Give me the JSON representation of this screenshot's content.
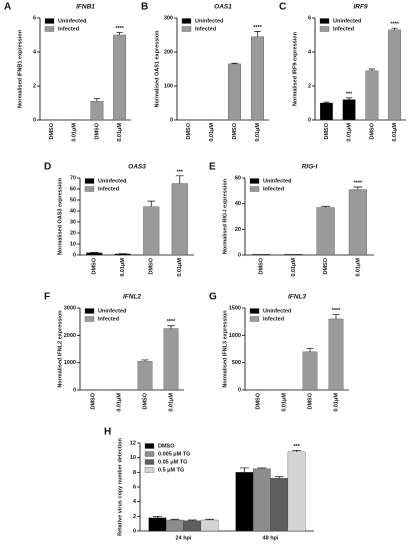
{
  "chart_data": [
    {
      "type": "bar",
      "label": "A",
      "title": "IFNB1",
      "ylabel": "Normalised IFNB1 expression",
      "categories": [
        "DMSO",
        "0.01μM",
        "DMSO",
        "0.01μM"
      ],
      "series": [
        {
          "name": "Uninfected",
          "color": "#000000",
          "values": [
            0.02,
            0.02,
            null,
            null
          ],
          "errors": [
            0,
            0,
            null,
            null
          ]
        },
        {
          "name": "Infected",
          "color": "#9a9a9a",
          "values": [
            null,
            null,
            1.1,
            5.0
          ],
          "errors": [
            null,
            null,
            0.15,
            0.15
          ]
        }
      ],
      "ylim": [
        0,
        6
      ],
      "yticks": [
        0,
        2,
        4,
        6
      ],
      "annotations": [
        {
          "text": "****",
          "series": 1,
          "index": 3
        }
      ]
    },
    {
      "type": "bar",
      "label": "B",
      "title": "OAS1",
      "ylabel": "Normalised OAS1 expression",
      "categories": [
        "DMSO",
        "0.01μM",
        "DMSO",
        "0.01μM"
      ],
      "series": [
        {
          "name": "Uninfected",
          "color": "#000000",
          "values": [
            1,
            1,
            null,
            null
          ],
          "errors": [
            0,
            0,
            null,
            null
          ]
        },
        {
          "name": "Infected",
          "color": "#9a9a9a",
          "values": [
            null,
            null,
            165,
            245
          ],
          "errors": [
            null,
            null,
            2,
            15
          ]
        }
      ],
      "ylim": [
        0,
        300
      ],
      "yticks": [
        0,
        100,
        200,
        300
      ],
      "annotations": [
        {
          "text": "****",
          "series": 1,
          "index": 3
        }
      ]
    },
    {
      "type": "bar",
      "label": "C",
      "title": "IRF9",
      "ylabel": "Normalised IRF9 expression",
      "categories": [
        "DMSO",
        "0.01μM",
        "DMSO",
        "0.01μM"
      ],
      "series": [
        {
          "name": "Uninfected",
          "color": "#000000",
          "values": [
            1.0,
            1.2,
            null,
            null
          ],
          "errors": [
            0.05,
            0.1,
            null,
            null
          ]
        },
        {
          "name": "Infected",
          "color": "#9a9a9a",
          "values": [
            null,
            null,
            2.9,
            5.3
          ],
          "errors": [
            null,
            null,
            0.1,
            0.1
          ]
        }
      ],
      "ylim": [
        0,
        6
      ],
      "yticks": [
        0,
        2,
        4,
        6
      ],
      "annotations": [
        {
          "text": "***",
          "series": 0,
          "index": 1
        },
        {
          "text": "****",
          "series": 1,
          "index": 3
        }
      ]
    },
    {
      "type": "bar",
      "label": "D",
      "title": "OAS3",
      "ylabel": "Normalised OAS3 expression",
      "categories": [
        "DMSO",
        "0.01μM",
        "DMSO",
        "0.01μM"
      ],
      "series": [
        {
          "name": "Uninfected",
          "color": "#000000",
          "values": [
            2,
            1,
            null,
            null
          ],
          "errors": [
            0.3,
            0.2,
            null,
            null
          ]
        },
        {
          "name": "Infected",
          "color": "#9a9a9a",
          "values": [
            null,
            null,
            44,
            65
          ],
          "errors": [
            null,
            null,
            5,
            7
          ]
        }
      ],
      "ylim": [
        0,
        70
      ],
      "yticks": [
        0,
        10,
        20,
        30,
        40,
        50,
        60,
        70
      ],
      "annotations": [
        {
          "text": "***",
          "series": 1,
          "index": 3
        }
      ]
    },
    {
      "type": "bar",
      "label": "E",
      "title": "RIG-I",
      "ylabel": "Normalised RIG-I expression",
      "categories": [
        "DMSO",
        "0.01μM",
        "DMSO",
        "0.01μM"
      ],
      "series": [
        {
          "name": "Uninfected",
          "color": "#000000",
          "values": [
            0.5,
            0.5,
            null,
            null
          ],
          "errors": [
            0,
            0,
            null,
            null
          ]
        },
        {
          "name": "Infected",
          "color": "#9a9a9a",
          "values": [
            null,
            null,
            37,
            51
          ],
          "errors": [
            null,
            null,
            1,
            2
          ]
        }
      ],
      "ylim": [
        0,
        60
      ],
      "yticks": [
        0,
        20,
        40,
        60
      ],
      "annotations": [
        {
          "text": "****",
          "series": 1,
          "index": 3
        }
      ]
    },
    {
      "type": "bar",
      "label": "F",
      "title": "IFNL2",
      "ylabel": "Normalised IFNL2 expression",
      "categories": [
        "DMSO",
        "0.01μM",
        "DMSO",
        "0.01μM"
      ],
      "series": [
        {
          "name": "Uninfected",
          "color": "#000000",
          "values": [
            5,
            5,
            null,
            null
          ],
          "errors": [
            0,
            0,
            null,
            null
          ]
        },
        {
          "name": "Infected",
          "color": "#9a9a9a",
          "values": [
            null,
            null,
            1050,
            2250
          ],
          "errors": [
            null,
            null,
            50,
            100
          ]
        }
      ],
      "ylim": [
        0,
        3000
      ],
      "yticks": [
        0,
        1000,
        2000,
        3000
      ],
      "annotations": [
        {
          "text": "****",
          "series": 1,
          "index": 3
        }
      ]
    },
    {
      "type": "bar",
      "label": "G",
      "title": "IFNL3",
      "ylabel": "Normalised IFNL3 expression",
      "categories": [
        "DMSO",
        "0.01μM",
        "DMSO",
        "0.01μM"
      ],
      "series": [
        {
          "name": "Uninfected",
          "color": "#000000",
          "values": [
            2,
            2,
            null,
            null
          ],
          "errors": [
            0,
            0,
            null,
            null
          ]
        },
        {
          "name": "Infected",
          "color": "#9a9a9a",
          "values": [
            null,
            null,
            700,
            1300
          ],
          "errors": [
            null,
            null,
            60,
            80
          ]
        }
      ],
      "ylim": [
        0,
        1500
      ],
      "yticks": [
        0,
        500,
        1000,
        1500
      ],
      "annotations": [
        {
          "text": "****",
          "series": 1,
          "index": 3
        }
      ]
    },
    {
      "type": "bar",
      "label": "H",
      "ylabel": "Relative virus copy number detection",
      "categories": [
        "24 hpi",
        "48 hpi"
      ],
      "series": [
        {
          "name": "DMSO",
          "color": "#000000",
          "values": [
            1.8,
            8.0
          ],
          "errors": [
            0.2,
            0.6
          ]
        },
        {
          "name": "0.005 μM TG",
          "color": "#8c8c8c",
          "values": [
            1.5,
            8.5
          ],
          "errors": [
            0.1,
            0.1
          ]
        },
        {
          "name": "0.05 μM TG",
          "color": "#5e5e5e",
          "values": [
            1.4,
            7.2
          ],
          "errors": [
            0.1,
            0.2
          ]
        },
        {
          "name": "0.5 μM TG",
          "color": "#d4d4d4",
          "values": [
            1.5,
            10.8
          ],
          "errors": [
            0.1,
            0.2
          ]
        }
      ],
      "ylim": [
        0,
        12
      ],
      "yticks": [
        0,
        2,
        4,
        6,
        8,
        10,
        12
      ],
      "annotations": [
        {
          "text": "***",
          "series": 3,
          "index": 1
        }
      ]
    }
  ]
}
